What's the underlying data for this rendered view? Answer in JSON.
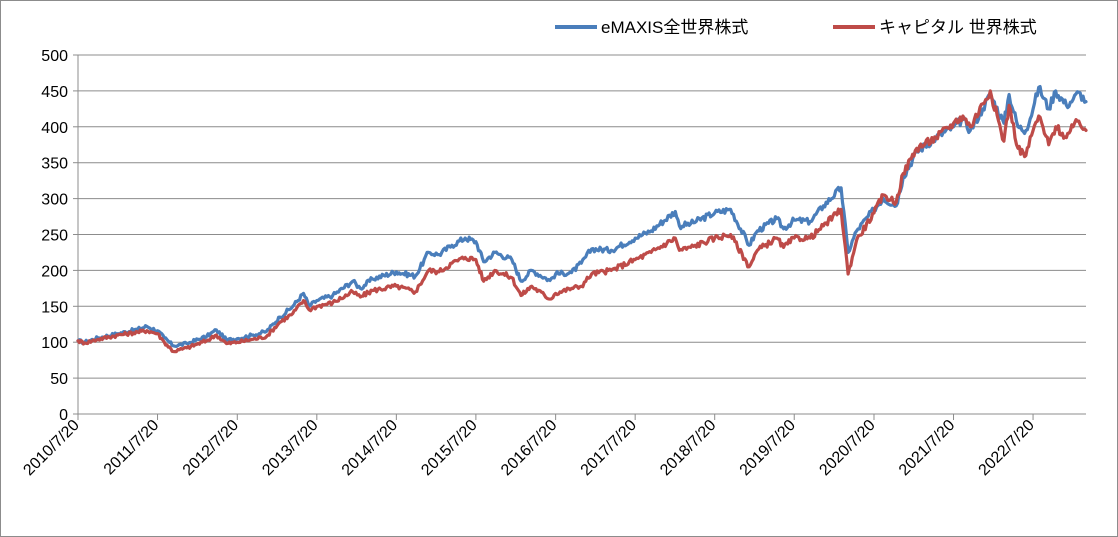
{
  "chart_data": {
    "type": "line",
    "title": "",
    "xlabel": "",
    "ylabel": "",
    "ylim": [
      0,
      500
    ],
    "yticks": [
      0,
      50,
      100,
      150,
      200,
      250,
      300,
      350,
      400,
      450,
      500
    ],
    "xlim": [
      "2010/7/20",
      "2023/3/20"
    ],
    "x_tick_labels": [
      "2010/7/20",
      "2011/7/20",
      "2012/7/20",
      "2013/7/20",
      "2014/7/20",
      "2015/7/20",
      "2016/7/20",
      "2017/7/20",
      "2018/7/20",
      "2019/7/20",
      "2020/7/20",
      "2021/7/20",
      "2022/7/20"
    ],
    "grid": "horizontal",
    "legend_position": "top-right",
    "series": [
      {
        "name": "eMAXIS全世界株式",
        "color": "#4a7ebb",
        "points": [
          [
            "2010/7/20",
            102
          ],
          [
            "2010/8/20",
            100
          ],
          [
            "2010/10/20",
            106
          ],
          [
            "2011/1/20",
            112
          ],
          [
            "2011/4/20",
            118
          ],
          [
            "2011/6/1",
            122
          ],
          [
            "2011/7/20",
            116
          ],
          [
            "2011/8/20",
            106
          ],
          [
            "2011/10/1",
            95
          ],
          [
            "2011/12/1",
            98
          ],
          [
            "2012/3/1",
            108
          ],
          [
            "2012/4/15",
            117
          ],
          [
            "2012/6/1",
            103
          ],
          [
            "2012/7/20",
            105
          ],
          [
            "2012/10/1",
            110
          ],
          [
            "2012/12/1",
            115
          ],
          [
            "2013/2/1",
            135
          ],
          [
            "2013/4/1",
            150
          ],
          [
            "2013/5/20",
            168
          ],
          [
            "2013/6/15",
            150
          ],
          [
            "2013/7/20",
            158
          ],
          [
            "2013/10/1",
            165
          ],
          [
            "2014/1/1",
            185
          ],
          [
            "2014/2/5",
            175
          ],
          [
            "2014/4/1",
            188
          ],
          [
            "2014/7/20",
            198
          ],
          [
            "2014/10/15",
            192
          ],
          [
            "2014/12/15",
            225
          ],
          [
            "2015/2/1",
            222
          ],
          [
            "2015/4/1",
            235
          ],
          [
            "2015/6/1",
            245
          ],
          [
            "2015/7/20",
            240
          ],
          [
            "2015/8/25",
            212
          ],
          [
            "2015/10/15",
            225
          ],
          [
            "2016/1/1",
            215
          ],
          [
            "2016/2/12",
            185
          ],
          [
            "2016/4/1",
            200
          ],
          [
            "2016/6/24",
            186
          ],
          [
            "2016/7/20",
            195
          ],
          [
            "2016/10/1",
            197
          ],
          [
            "2016/11/15",
            210
          ],
          [
            "2017/1/1",
            230
          ],
          [
            "2017/4/1",
            228
          ],
          [
            "2017/7/20",
            245
          ],
          [
            "2017/10/1",
            255
          ],
          [
            "2018/1/20",
            282
          ],
          [
            "2018/2/8",
            262
          ],
          [
            "2018/4/1",
            265
          ],
          [
            "2018/7/20",
            280
          ],
          [
            "2018/10/1",
            285
          ],
          [
            "2018/12/25",
            235
          ],
          [
            "2019/2/1",
            255
          ],
          [
            "2019/5/1",
            272
          ],
          [
            "2019/6/1",
            258
          ],
          [
            "2019/7/20",
            270
          ],
          [
            "2019/10/1",
            268
          ],
          [
            "2019/12/1",
            290
          ],
          [
            "2020/2/20",
            315
          ],
          [
            "2020/3/23",
            225
          ],
          [
            "2020/5/1",
            255
          ],
          [
            "2020/7/20",
            285
          ],
          [
            "2020/9/1",
            300
          ],
          [
            "2020/10/30",
            290
          ],
          [
            "2020/12/1",
            330
          ],
          [
            "2021/2/1",
            365
          ],
          [
            "2021/5/1",
            385
          ],
          [
            "2021/7/20",
            400
          ],
          [
            "2021/9/1",
            410
          ],
          [
            "2021/10/5",
            395
          ],
          [
            "2021/12/1",
            425
          ],
          [
            "2022/1/5",
            445
          ],
          [
            "2022/3/8",
            405
          ],
          [
            "2022/4/1",
            445
          ],
          [
            "2022/5/12",
            400
          ],
          [
            "2022/6/17",
            395
          ],
          [
            "2022/7/20",
            425
          ],
          [
            "2022/8/15",
            455
          ],
          [
            "2022/9/30",
            425
          ],
          [
            "2022/11/1",
            450
          ],
          [
            "2022/12/20",
            430
          ],
          [
            "2023/1/20",
            438
          ],
          [
            "2023/2/15",
            448
          ],
          [
            "2023/3/20",
            435
          ]
        ]
      },
      {
        "name": "キャピタル 世界株式",
        "color": "#be4b48",
        "points": [
          [
            "2010/7/20",
            102
          ],
          [
            "2010/8/20",
            99
          ],
          [
            "2010/10/20",
            104
          ],
          [
            "2011/1/20",
            110
          ],
          [
            "2011/4/20",
            114
          ],
          [
            "2011/6/1",
            116
          ],
          [
            "2011/7/20",
            112
          ],
          [
            "2011/8/20",
            100
          ],
          [
            "2011/10/1",
            87
          ],
          [
            "2011/12/1",
            92
          ],
          [
            "2012/3/1",
            102
          ],
          [
            "2012/4/15",
            110
          ],
          [
            "2012/6/1",
            98
          ],
          [
            "2012/7/20",
            100
          ],
          [
            "2012/10/1",
            104
          ],
          [
            "2012/12/1",
            108
          ],
          [
            "2013/2/1",
            128
          ],
          [
            "2013/4/1",
            140
          ],
          [
            "2013/5/20",
            158
          ],
          [
            "2013/6/15",
            145
          ],
          [
            "2013/7/20",
            150
          ],
          [
            "2013/10/1",
            155
          ],
          [
            "2014/1/1",
            170
          ],
          [
            "2014/2/5",
            163
          ],
          [
            "2014/4/1",
            172
          ],
          [
            "2014/7/20",
            178
          ],
          [
            "2014/10/15",
            170
          ],
          [
            "2014/12/15",
            200
          ],
          [
            "2015/2/1",
            198
          ],
          [
            "2015/4/1",
            210
          ],
          [
            "2015/6/1",
            218
          ],
          [
            "2015/7/20",
            215
          ],
          [
            "2015/8/25",
            185
          ],
          [
            "2015/10/15",
            200
          ],
          [
            "2016/1/1",
            190
          ],
          [
            "2016/2/12",
            165
          ],
          [
            "2016/4/1",
            178
          ],
          [
            "2016/6/24",
            160
          ],
          [
            "2016/7/20",
            168
          ],
          [
            "2016/10/1",
            175
          ],
          [
            "2016/11/15",
            178
          ],
          [
            "2017/1/1",
            195
          ],
          [
            "2017/4/1",
            200
          ],
          [
            "2017/7/20",
            215
          ],
          [
            "2017/10/1",
            225
          ],
          [
            "2018/1/20",
            245
          ],
          [
            "2018/2/8",
            228
          ],
          [
            "2018/4/1",
            232
          ],
          [
            "2018/7/20",
            245
          ],
          [
            "2018/10/1",
            250
          ],
          [
            "2018/12/25",
            205
          ],
          [
            "2019/2/1",
            228
          ],
          [
            "2019/5/1",
            245
          ],
          [
            "2019/6/1",
            232
          ],
          [
            "2019/7/20",
            245
          ],
          [
            "2019/10/1",
            245
          ],
          [
            "2019/12/1",
            262
          ],
          [
            "2020/2/20",
            285
          ],
          [
            "2020/3/23",
            195
          ],
          [
            "2020/5/1",
            242
          ],
          [
            "2020/7/20",
            280
          ],
          [
            "2020/9/1",
            305
          ],
          [
            "2020/10/30",
            295
          ],
          [
            "2020/12/1",
            335
          ],
          [
            "2021/2/1",
            370
          ],
          [
            "2021/5/1",
            385
          ],
          [
            "2021/7/20",
            405
          ],
          [
            "2021/9/1",
            415
          ],
          [
            "2021/10/5",
            400
          ],
          [
            "2021/12/1",
            432
          ],
          [
            "2022/1/5",
            450
          ],
          [
            "2022/3/8",
            380
          ],
          [
            "2022/4/1",
            430
          ],
          [
            "2022/5/12",
            370
          ],
          [
            "2022/6/17",
            360
          ],
          [
            "2022/7/20",
            395
          ],
          [
            "2022/8/15",
            415
          ],
          [
            "2022/9/30",
            375
          ],
          [
            "2022/11/1",
            400
          ],
          [
            "2022/12/20",
            385
          ],
          [
            "2023/1/20",
            400
          ],
          [
            "2023/2/15",
            408
          ],
          [
            "2023/3/20",
            395
          ]
        ]
      }
    ]
  }
}
